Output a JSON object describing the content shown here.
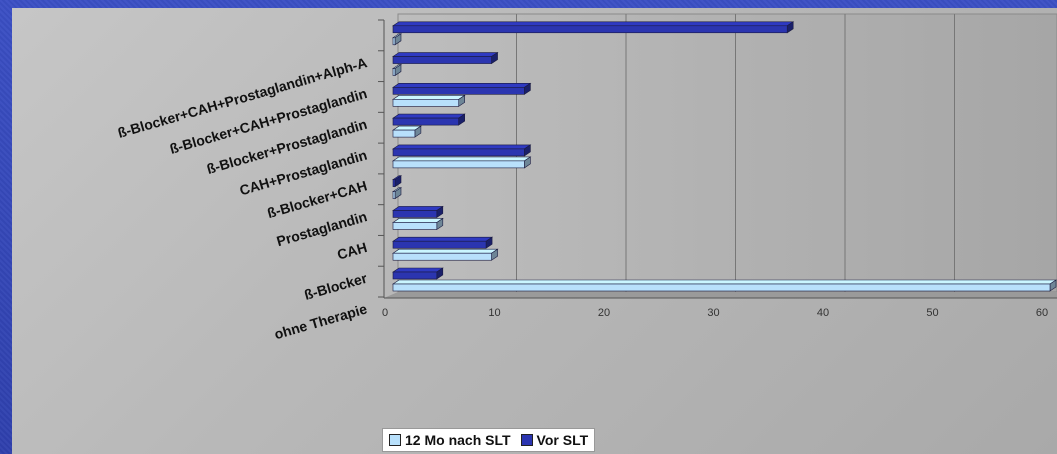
{
  "chart_data": {
    "type": "bar",
    "orientation": "horizontal",
    "categories": [
      "ohne Therapie",
      "ß-Blocker",
      "CAH",
      "Prostaglandin",
      "ß-Blocker+CAH",
      "CAH+Prostaglandin",
      "ß-Blocker+Prostaglandin",
      "ß-Blocker+CAH+Prostaglandin",
      "ß-Blocker+CAH+Prostaglandin+Alph-A"
    ],
    "series": [
      {
        "name": "12 Mo nach SLT",
        "color": "#b8e0fb",
        "values": [
          60,
          9,
          4,
          0,
          12,
          2,
          6,
          0,
          0
        ]
      },
      {
        "name": "Vor SLT",
        "color": "#2b35b0",
        "values": [
          4,
          8.5,
          4,
          0,
          12,
          6,
          12,
          9,
          36
        ]
      }
    ],
    "xlim": [
      0,
      60
    ],
    "x_ticks": [
      "0",
      "10",
      "20",
      "30",
      "40",
      "50",
      "60"
    ],
    "grid": true,
    "legend_position": "bottom",
    "title": "",
    "xlabel": "",
    "ylabel": ""
  }
}
